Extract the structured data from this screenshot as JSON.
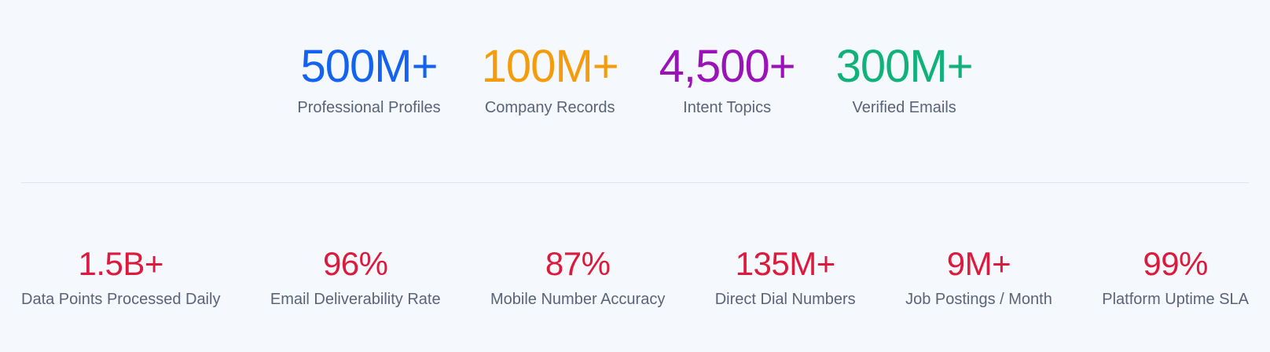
{
  "top_stats": [
    {
      "value": "500M+",
      "label": "Professional Profiles",
      "color": "#1463f0"
    },
    {
      "value": "100M+",
      "label": "Company Records",
      "color": "#f59c0c"
    },
    {
      "value": "4,500+",
      "label": "Intent Topics",
      "color": "#9a12b8"
    },
    {
      "value": "300M+",
      "label": "Verified Emails",
      "color": "#10b27a"
    }
  ],
  "bottom_stats": [
    {
      "value": "1.5B+",
      "label": "Data Points Processed Daily"
    },
    {
      "value": "96%",
      "label": "Email Deliverability Rate"
    },
    {
      "value": "87%",
      "label": "Mobile Number Accuracy"
    },
    {
      "value": "135M+",
      "label": "Direct Dial Numbers"
    },
    {
      "value": "9M+",
      "label": "Job Postings / Month"
    },
    {
      "value": "99%",
      "label": "Platform Uptime SLA"
    }
  ],
  "colors": {
    "background": "#f5f8fc",
    "bottom_value": "#dc1a3c",
    "label": "#5a6478",
    "divider": "#e0e5ec"
  }
}
